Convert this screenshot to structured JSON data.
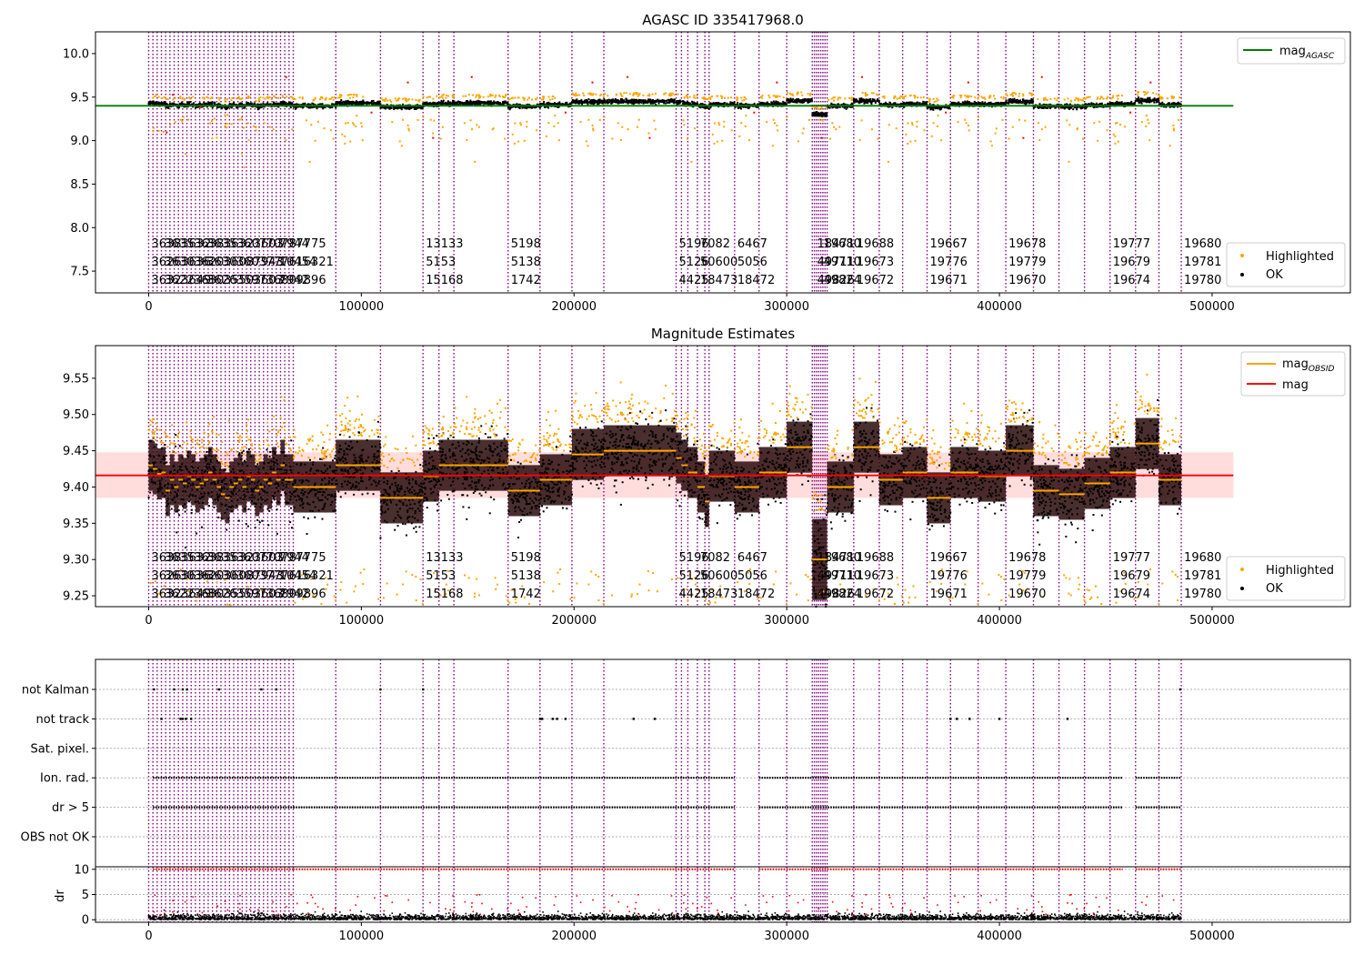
{
  "figure": {
    "title": "AGASC ID 335417968.0"
  },
  "obsid_labels": {
    "row1": [
      "3638",
      "3635",
      "3632",
      "3638",
      "3635",
      "3632",
      "3607",
      "3603",
      "7078",
      "7944",
      "7775",
      "13133",
      "5198",
      "5196",
      "7082",
      "6467",
      "18471",
      "19680",
      "19688",
      "19667",
      "19678",
      "19777",
      "19680"
    ],
    "row2": [
      "3626",
      "3630",
      "3636",
      "3620",
      "3630",
      "3608",
      "3603",
      "7943",
      "7776",
      "10454",
      "16321",
      "5153",
      "5138",
      "5126",
      "50600",
      "5056",
      "49711",
      "49710",
      "19673",
      "19776",
      "19779",
      "19679",
      "19781"
    ],
    "row3": [
      "3632",
      "3622",
      "3649",
      "3630",
      "3626",
      "3550",
      "3597",
      "3603",
      "3680",
      "7942",
      "9896",
      "15168",
      "1742",
      "4425",
      "18473",
      "18472",
      "49826",
      "49824",
      "19672",
      "19671",
      "19670",
      "19674",
      "19780"
    ]
  },
  "legends": {
    "top_lines": [
      {
        "label_base": "mag",
        "label_sub": "AGASC",
        "color": "#008000"
      }
    ],
    "mid_lines": [
      {
        "label_base": "mag",
        "label_sub": "OBSID",
        "color": "#ffa500"
      },
      {
        "label": "mag",
        "color": "#ff0000"
      }
    ],
    "points": [
      {
        "label": "Highlighted",
        "color": "#ffa500"
      },
      {
        "label": "OK",
        "color": "#000000"
      }
    ]
  },
  "chart_data": [
    {
      "type": "scatter",
      "title": "AGASC ID 335417968.0",
      "xlabel": "",
      "ylabel": "",
      "xlim": [
        -25000,
        565000
      ],
      "ylim": [
        7.25,
        10.25
      ],
      "xticks": [
        0,
        100000,
        200000,
        300000,
        400000,
        500000
      ],
      "yticks": [
        7.5,
        8.0,
        8.5,
        9.0,
        9.5,
        10.0
      ],
      "series": [
        {
          "name": "mag_AGASC",
          "kind": "hline",
          "y": 9.4,
          "x": [
            -25000,
            510000
          ],
          "color": "#008000"
        },
        {
          "name": "Highlighted",
          "kind": "scatter",
          "color": "#ffa500"
        },
        {
          "name": "OK",
          "kind": "scatter",
          "color": "#000000"
        }
      ],
      "obsid_boundaries": [
        0,
        2000,
        4000,
        6000,
        8000,
        10000,
        12000,
        14000,
        16000,
        18000,
        20000,
        22000,
        24000,
        26000,
        28000,
        30000,
        32000,
        34000,
        36000,
        38000,
        40000,
        42000,
        44000,
        46000,
        48000,
        50000,
        52000,
        54000,
        56000,
        58000,
        60000,
        62000,
        64000,
        66000,
        68000,
        88000,
        109000,
        129000,
        136500,
        143500,
        169000,
        184000,
        199000,
        214000,
        248000,
        250500,
        253500,
        258000,
        261500,
        263500,
        275500,
        287000,
        300000,
        312000,
        313000,
        314000,
        315000,
        316000,
        317000,
        318000,
        319000,
        331500,
        343500,
        354500,
        366000,
        377000,
        390000,
        403000,
        416000,
        428000,
        440000,
        452000,
        464000,
        475000,
        485500
      ],
      "legend": "top-right",
      "grid": false
    },
    {
      "type": "scatter",
      "title": "Magnitude Estimates",
      "xlabel": "",
      "ylabel": "",
      "xlim": [
        -25000,
        565000
      ],
      "ylim": [
        9.235,
        9.595
      ],
      "xticks": [
        0,
        100000,
        200000,
        300000,
        400000,
        500000
      ],
      "yticks": [
        9.25,
        9.3,
        9.35,
        9.4,
        9.45,
        9.5,
        9.55
      ],
      "band": {
        "low": 9.385,
        "high": 9.448,
        "color": "#ffb3b3"
      },
      "series": [
        {
          "name": "mag",
          "kind": "hline",
          "y": 9.416,
          "color": "#ff0000"
        },
        {
          "name": "mag_OBSID",
          "kind": "segments",
          "color": "#ffa500",
          "segments": [
            [
              0,
              2000,
              9.43
            ],
            [
              2000,
              4000,
              9.425
            ],
            [
              4000,
              6000,
              9.418
            ],
            [
              6000,
              8000,
              9.42
            ],
            [
              8000,
              10000,
              9.395
            ],
            [
              10000,
              12000,
              9.41
            ],
            [
              12000,
              14000,
              9.4
            ],
            [
              14000,
              16000,
              9.41
            ],
            [
              16000,
              18000,
              9.405
            ],
            [
              18000,
              20000,
              9.415
            ],
            [
              20000,
              22000,
              9.41
            ],
            [
              22000,
              24000,
              9.4
            ],
            [
              24000,
              26000,
              9.405
            ],
            [
              26000,
              28000,
              9.41
            ],
            [
              28000,
              30000,
              9.42
            ],
            [
              30000,
              32000,
              9.41
            ],
            [
              32000,
              34000,
              9.4
            ],
            [
              34000,
              36000,
              9.39
            ],
            [
              36000,
              38000,
              9.385
            ],
            [
              38000,
              40000,
              9.4
            ],
            [
              40000,
              42000,
              9.405
            ],
            [
              42000,
              44000,
              9.41
            ],
            [
              44000,
              46000,
              9.4
            ],
            [
              46000,
              48000,
              9.415
            ],
            [
              48000,
              50000,
              9.41
            ],
            [
              50000,
              52000,
              9.395
            ],
            [
              52000,
              54000,
              9.4
            ],
            [
              54000,
              56000,
              9.41
            ],
            [
              56000,
              58000,
              9.405
            ],
            [
              58000,
              60000,
              9.42
            ],
            [
              60000,
              62000,
              9.41
            ],
            [
              62000,
              64000,
              9.43
            ],
            [
              64000,
              66000,
              9.41
            ],
            [
              66000,
              68000,
              9.41
            ],
            [
              68000,
              88000,
              9.4
            ],
            [
              88000,
              109000,
              9.43
            ],
            [
              109000,
              129000,
              9.385
            ],
            [
              129000,
              136500,
              9.415
            ],
            [
              136500,
              143500,
              9.43
            ],
            [
              143500,
              169000,
              9.43
            ],
            [
              169000,
              184000,
              9.395
            ],
            [
              184000,
              199000,
              9.41
            ],
            [
              199000,
              214000,
              9.445
            ],
            [
              214000,
              248000,
              9.45
            ],
            [
              248000,
              250500,
              9.44
            ],
            [
              250500,
              253500,
              9.43
            ],
            [
              253500,
              258000,
              9.42
            ],
            [
              258000,
              261500,
              9.4
            ],
            [
              261500,
              263500,
              9.38
            ],
            [
              263500,
              275500,
              9.415
            ],
            [
              275500,
              287000,
              9.4
            ],
            [
              287000,
              300000,
              9.42
            ],
            [
              300000,
              312000,
              9.455
            ],
            [
              312000,
              319000,
              9.3
            ],
            [
              319000,
              331500,
              9.4
            ],
            [
              331500,
              343500,
              9.455
            ],
            [
              343500,
              354500,
              9.41
            ],
            [
              354500,
              366000,
              9.42
            ],
            [
              366000,
              377000,
              9.385
            ],
            [
              377000,
              390000,
              9.42
            ],
            [
              390000,
              403000,
              9.415
            ],
            [
              403000,
              416000,
              9.45
            ],
            [
              416000,
              428000,
              9.395
            ],
            [
              428000,
              440000,
              9.39
            ],
            [
              440000,
              452000,
              9.405
            ],
            [
              452000,
              464000,
              9.42
            ],
            [
              464000,
              475000,
              9.46
            ],
            [
              475000,
              485500,
              9.41
            ]
          ]
        },
        {
          "name": "Highlighted",
          "kind": "scatter",
          "color": "#ffa500"
        },
        {
          "name": "OK",
          "kind": "scatter",
          "color": "#000000"
        }
      ],
      "legend": "top-right",
      "grid": false
    },
    {
      "type": "scatter",
      "title": "",
      "xlabel": "",
      "ylabel": "",
      "xlim": [
        -25000,
        565000
      ],
      "ytick_labels": [
        "not Kalman",
        "not track",
        "Sat. pixel.",
        "Ion. rad.",
        "dr > 5",
        "OBS not OK"
      ],
      "flag_segments": {
        "Ion. rad.": [
          [
            2000,
            68000
          ],
          [
            68000,
            275500
          ],
          [
            287000,
            458000
          ],
          [
            464000,
            485500
          ]
        ],
        "dr > 5": [
          [
            2000,
            68000
          ],
          [
            68000,
            275500
          ],
          [
            287000,
            458000
          ],
          [
            464000,
            485500
          ]
        ]
      },
      "flag_points": {
        "not Kalman": [
          2500,
          12000,
          16000,
          18000,
          33000,
          53000,
          60000,
          109000,
          129000,
          485000
        ],
        "not track": [
          6000,
          15000,
          16000,
          17500,
          20000,
          184000,
          185000,
          190000,
          192000,
          196000,
          228000,
          238000,
          377000,
          380000,
          386000,
          400000,
          432000
        ]
      }
    },
    {
      "type": "scatter",
      "title": "",
      "xlabel": "",
      "ylabel": "dr",
      "xlim": [
        -25000,
        565000
      ],
      "ylim": [
        -0.5,
        10.5
      ],
      "yticks": [
        0,
        5,
        10
      ],
      "series": [
        {
          "name": "dr",
          "kind": "scatter",
          "color": "#000000"
        },
        {
          "name": "dr clipped",
          "kind": "scatter",
          "color": "#ff0000",
          "y": 10
        }
      ],
      "grid": true
    }
  ]
}
